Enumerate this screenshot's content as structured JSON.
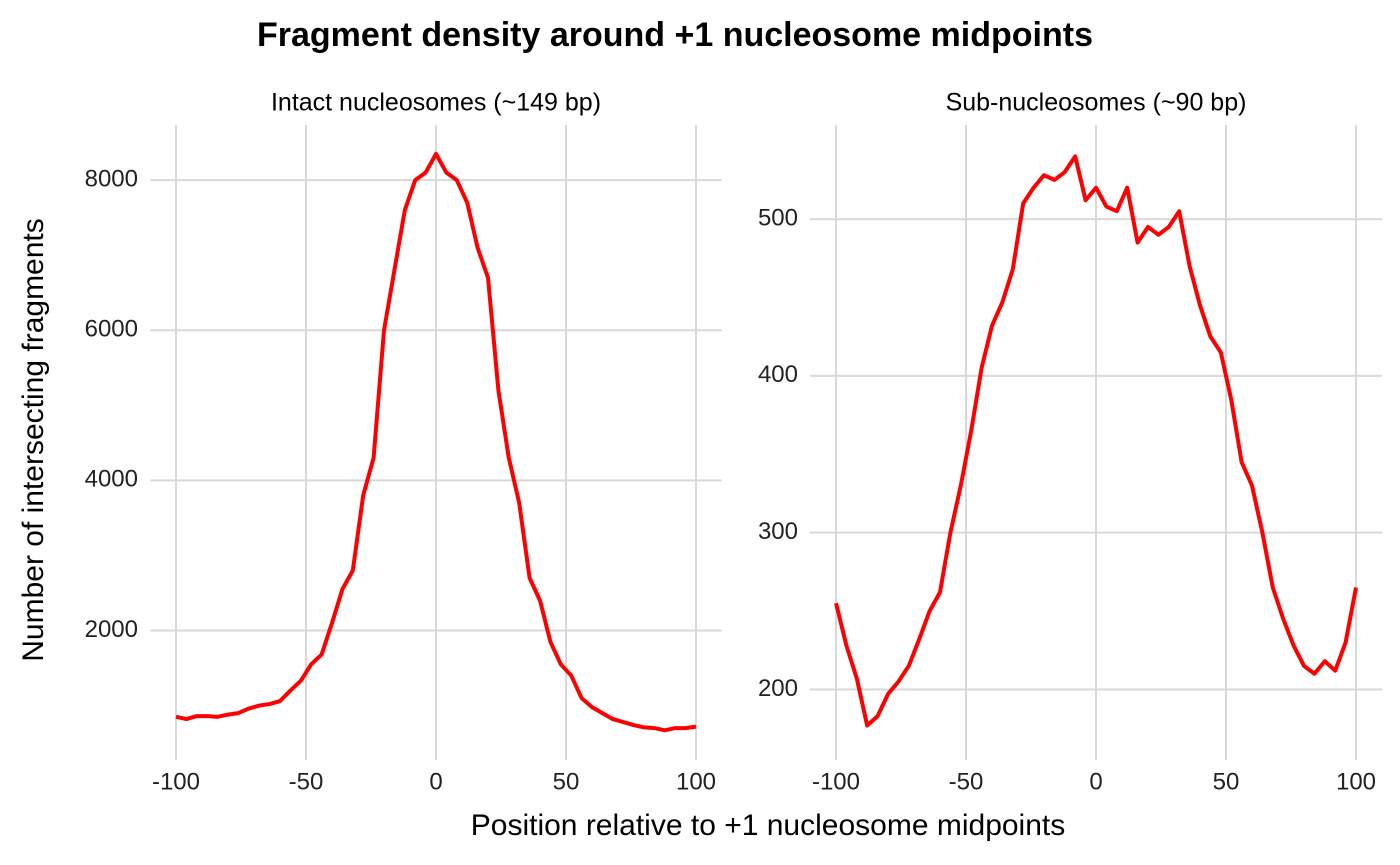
{
  "title": "Fragment density around +1 nucleosome midpoints",
  "x_label": "Position relative to +1 nucleosome midpoints",
  "y_label": "Number of intersecting fragments",
  "chart_data": [
    {
      "type": "line",
      "subtitle": "Intact nucleosomes (~149 bp)",
      "x": [
        -100,
        -96,
        -92,
        -88,
        -84,
        -80,
        -76,
        -72,
        -68,
        -64,
        -60,
        -56,
        -52,
        -48,
        -44,
        -40,
        -36,
        -32,
        -28,
        -24,
        -20,
        -16,
        -12,
        -8,
        -4,
        0,
        4,
        8,
        12,
        16,
        20,
        24,
        28,
        32,
        36,
        40,
        44,
        48,
        52,
        56,
        60,
        64,
        68,
        72,
        76,
        80,
        84,
        88,
        92,
        96,
        100
      ],
      "series": [
        {
          "color": "#ff0000",
          "values": [
            850,
            820,
            860,
            860,
            850,
            880,
            900,
            960,
            1000,
            1020,
            1060,
            1200,
            1330,
            1550,
            1680,
            2100,
            2550,
            2800,
            3800,
            4300,
            6000,
            6800,
            7600,
            8000,
            8100,
            8350,
            8100,
            8000,
            7700,
            7100,
            6700,
            5200,
            4300,
            3700,
            2700,
            2400,
            1850,
            1550,
            1400,
            1100,
            980,
            900,
            820,
            780,
            740,
            710,
            700,
            670,
            700,
            700,
            720
          ]
        }
      ],
      "xlim": [
        -110,
        110
      ],
      "ylim": [
        275,
        8735
      ],
      "xticks": [
        -100,
        -50,
        0,
        50,
        100
      ],
      "yticks": [
        2000,
        4000,
        6000,
        8000
      ],
      "grid": true
    },
    {
      "type": "line",
      "subtitle": "Sub-nucleosomes (~90 bp)",
      "x": [
        -100,
        -96,
        -92,
        -88,
        -84,
        -80,
        -76,
        -72,
        -68,
        -64,
        -60,
        -56,
        -52,
        -48,
        -44,
        -40,
        -36,
        -32,
        -28,
        -24,
        -20,
        -16,
        -12,
        -8,
        -4,
        0,
        4,
        8,
        12,
        16,
        20,
        24,
        28,
        32,
        36,
        40,
        44,
        48,
        52,
        56,
        60,
        64,
        68,
        72,
        76,
        80,
        84,
        88,
        92,
        96,
        100
      ],
      "series": [
        {
          "color": "#ff0000",
          "values": [
            255,
            228,
            207,
            177,
            183,
            197,
            205,
            215,
            232,
            250,
            262,
            300,
            330,
            365,
            405,
            432,
            447,
            468,
            510,
            520,
            528,
            525,
            530,
            540,
            512,
            520,
            508,
            505,
            520,
            485,
            495,
            490,
            495,
            505,
            470,
            445,
            425,
            415,
            385,
            345,
            330,
            300,
            265,
            245,
            228,
            215,
            210,
            218,
            212,
            230,
            265
          ]
        }
      ],
      "xlim": [
        -110,
        110
      ],
      "ylim": [
        155,
        560
      ],
      "xticks": [
        -100,
        -50,
        0,
        50,
        100
      ],
      "yticks": [
        200,
        300,
        400,
        500
      ],
      "grid": true
    }
  ]
}
